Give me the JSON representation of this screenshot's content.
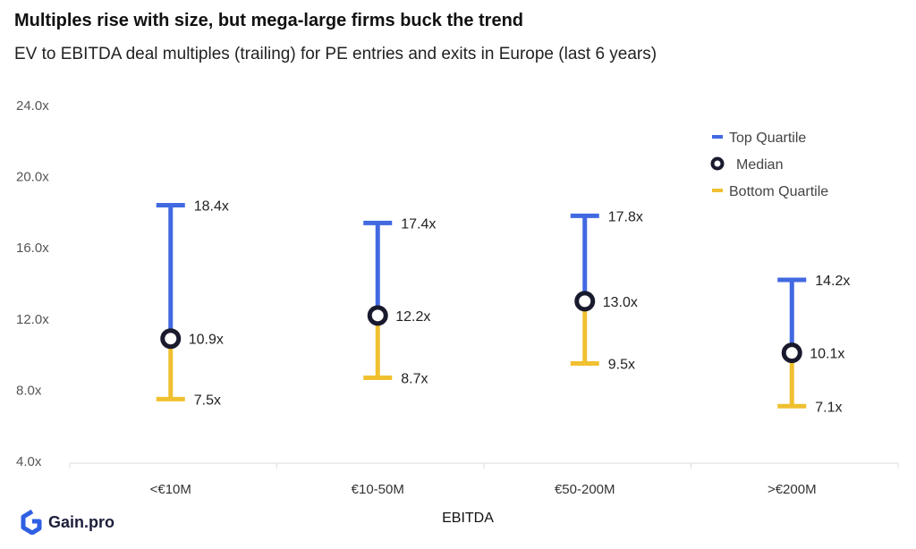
{
  "header": {
    "title": "Multiples rise with size, but mega-large firms buck the trend",
    "subtitle": "EV to EBITDA deal multiples (trailing) for PE entries and exits in Europe (last 6 years)"
  },
  "brand": {
    "name": "Gain.pro",
    "color": "#2f5fe3"
  },
  "chart_data": {
    "type": "range",
    "title": "Multiples rise with size, but mega-large firms buck the trend",
    "subtitle": "EV to EBITDA deal multiples (trailing) for PE entries and exits in Europe (last 6 years)",
    "xlabel": "EBITDA",
    "ylabel": "",
    "ylim": [
      4,
      24
    ],
    "yticks": [
      4,
      8,
      12,
      16,
      20,
      24
    ],
    "ytick_labels": [
      "4.0x",
      "8.0x",
      "12.0x",
      "16.0x",
      "20.0x",
      "24.0x"
    ],
    "categories": [
      "<€10M",
      "€10-50M",
      "€50-200M",
      ">€200M"
    ],
    "series": [
      {
        "name": "Top Quartile",
        "values": [
          18.4,
          17.4,
          17.8,
          14.2
        ],
        "labels": [
          "18.4x",
          "17.4x",
          "17.8x",
          "14.2x"
        ],
        "color": "#4169e1"
      },
      {
        "name": "Median",
        "values": [
          10.9,
          12.2,
          13.0,
          10.1
        ],
        "labels": [
          "10.9x",
          "12.2x",
          "13.0x",
          "10.1x"
        ],
        "color": "#1a1a2e"
      },
      {
        "name": "Bottom Quartile",
        "values": [
          7.5,
          8.7,
          9.5,
          7.1
        ],
        "labels": [
          "7.5x",
          "8.7x",
          "9.5x",
          "7.1x"
        ],
        "color": "#f0c030"
      }
    ],
    "legend": {
      "position": "top-right",
      "items": [
        "Top Quartile",
        "Median",
        "Bottom Quartile"
      ]
    },
    "grid": false
  }
}
